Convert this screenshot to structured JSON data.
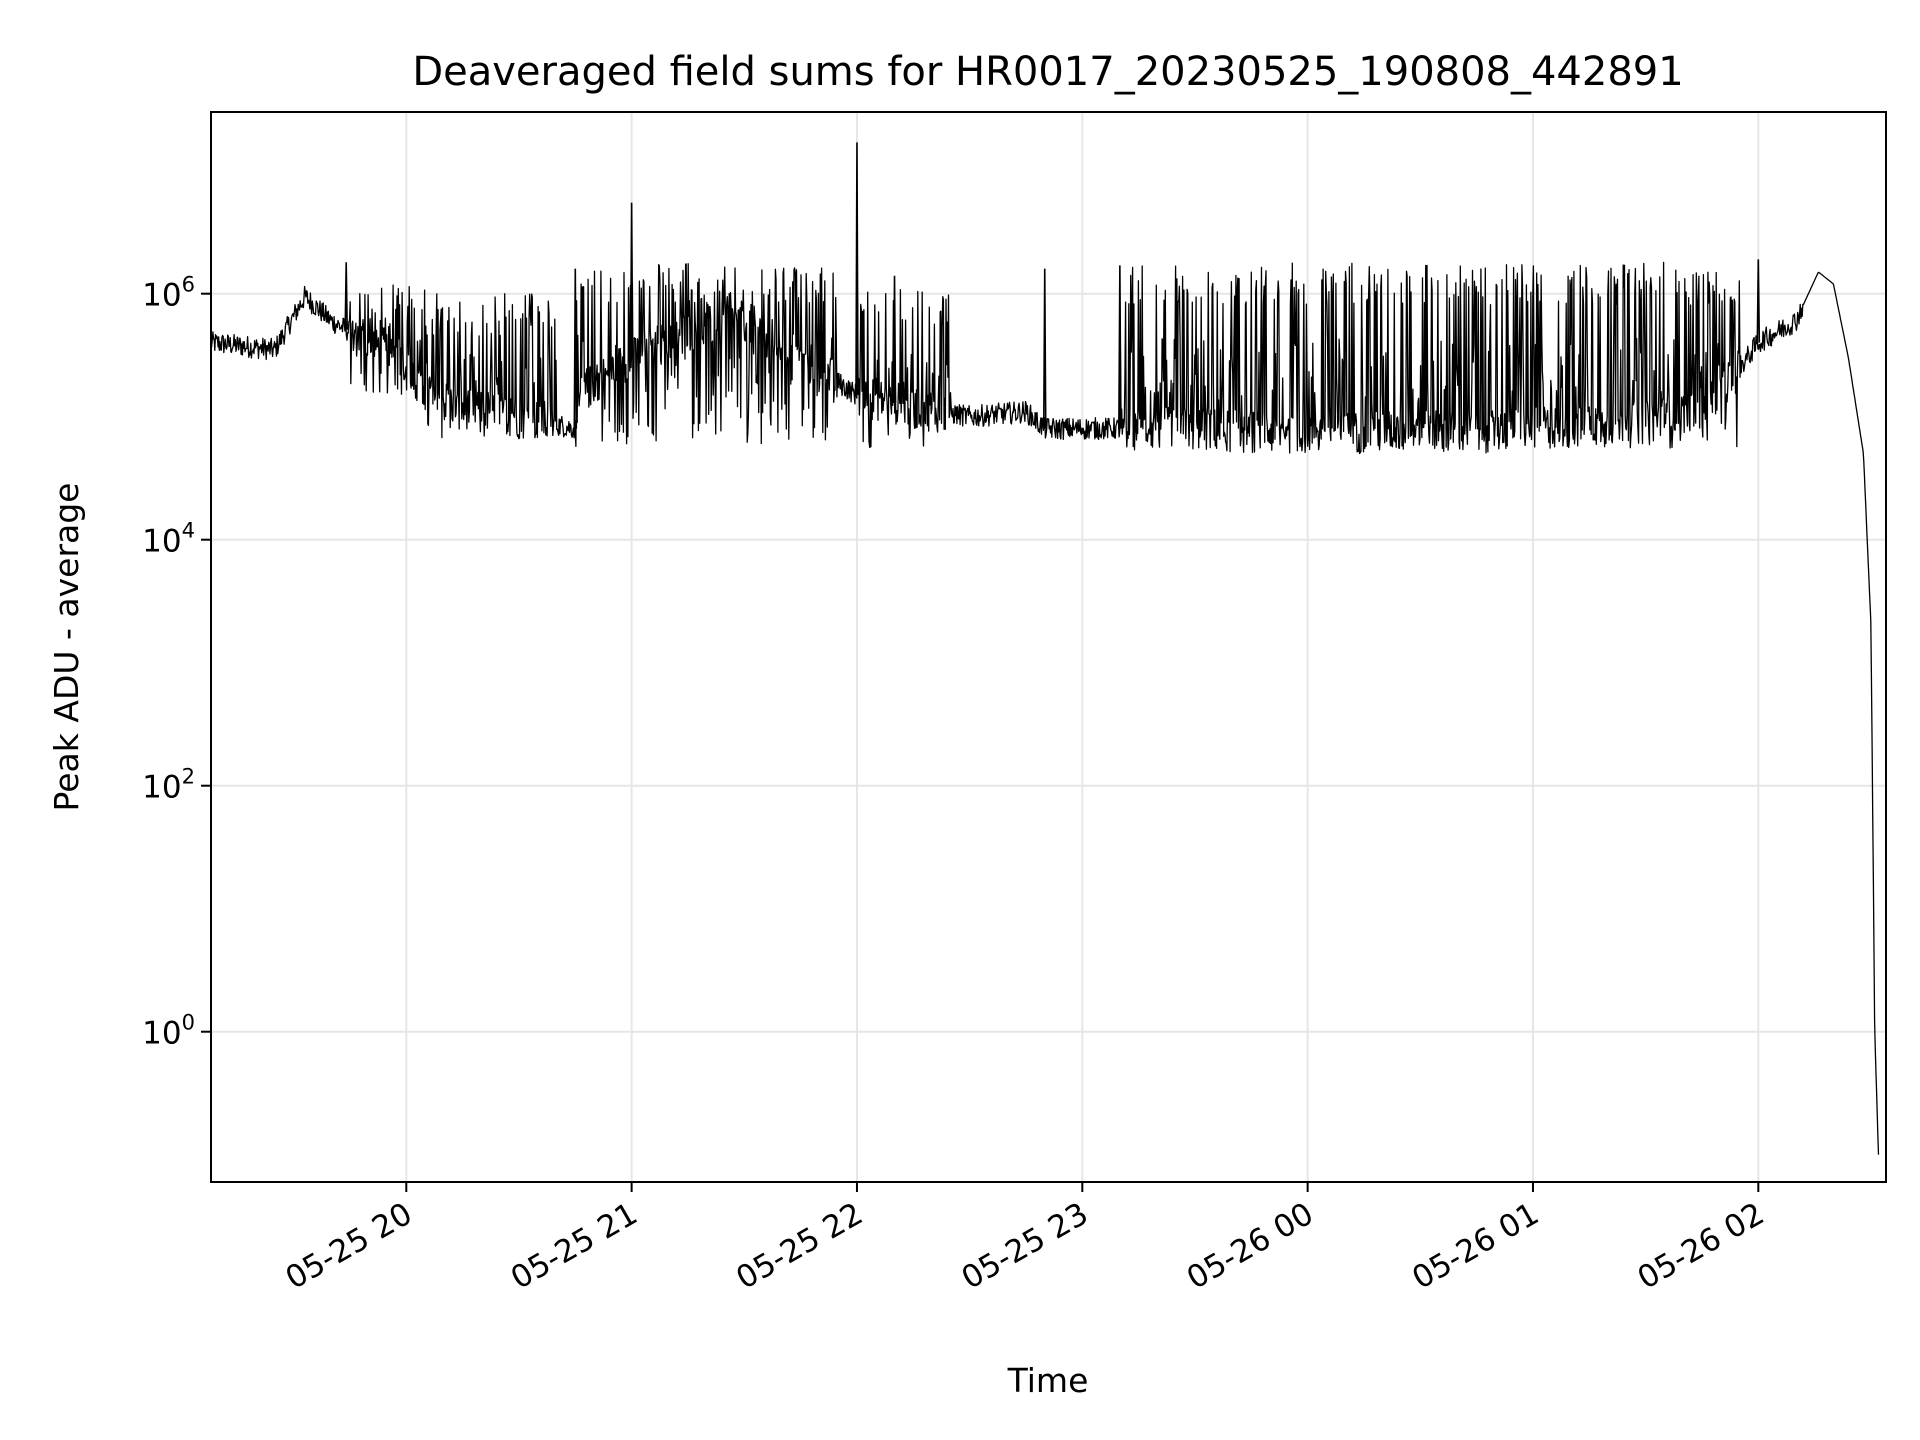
{
  "chart_data": {
    "type": "line",
    "title": "Deaveraged field sums for HR0017_20230525_190808_442891",
    "xlabel": "Time",
    "ylabel": "Peak ADU - average",
    "yscale": "log",
    "ylim": [
      0.06,
      30000000.0
    ],
    "xlim": [
      "2023-05-25 19:08:00",
      "2023-05-26 02:34:00"
    ],
    "grid": true,
    "legend": "none",
    "line_color": "#000000",
    "x_ticks": [
      "05-25 20",
      "05-25 21",
      "05-25 22",
      "05-25 23",
      "05-26 00",
      "05-26 01",
      "05-26 02"
    ],
    "y_ticks": [
      {
        "value": 1,
        "base": "10",
        "exp": "0"
      },
      {
        "value": 100,
        "base": "10",
        "exp": "2"
      },
      {
        "value": 10000,
        "base": "10",
        "exp": "4"
      },
      {
        "value": 1000000,
        "base": "10",
        "exp": "6"
      }
    ],
    "series": [
      {
        "x": [
          "2023-05-25 19:08:00",
          "2023-05-25 19:15:00",
          "2023-05-25 19:25:00",
          "2023-05-25 19:33:00",
          "2023-05-25 19:40:00",
          "2023-05-25 19:50:00",
          "2023-05-25 20:00:00",
          "2023-05-25 20:02:00",
          "2023-05-25 20:15:00",
          "2023-05-25 20:30:00",
          "2023-05-25 20:45:00",
          "2023-05-25 20:47:00",
          "2023-05-25 21:00:00",
          "2023-05-25 21:15:00",
          "2023-05-25 21:30:00",
          "2023-05-25 21:45:00",
          "2023-05-25 22:00:00",
          "2023-05-25 22:15:00",
          "2023-05-25 22:30:00",
          "2023-05-25 22:45:00",
          "2023-05-25 22:50:00",
          "2023-05-25 23:00:00",
          "2023-05-25 23:15:00",
          "2023-05-25 23:30:00",
          "2023-05-25 23:45:00",
          "2023-05-26 00:00:00",
          "2023-05-26 00:15:00",
          "2023-05-26 00:30:00",
          "2023-05-26 00:45:00",
          "2023-05-26 01:00:00",
          "2023-05-26 01:15:00",
          "2023-05-26 01:30:00",
          "2023-05-26 01:45:00",
          "2023-05-26 01:55:00",
          "2023-05-26 02:00:00",
          "2023-05-26 02:10:00",
          "2023-05-26 02:16:00",
          "2023-05-26 02:20:00",
          "2023-05-26 02:24:00",
          "2023-05-26 02:28:00",
          "2023-05-26 02:30:00",
          "2023-05-26 02:31:00",
          "2023-05-26 02:32:00"
        ],
        "values": [
          400000,
          380000,
          350000,
          950000,
          600000,
          400000,
          300000,
          160000,
          120000,
          100000,
          80000,
          160000,
          300000,
          500000,
          600000,
          300000,
          150000,
          120000,
          100000,
          110000,
          80000,
          80000,
          80000,
          80000,
          75000,
          75000,
          75000,
          75000,
          75000,
          80000,
          85000,
          90000,
          120000,
          250000,
          400000,
          600000,
          1500000,
          1200000,
          300000,
          50000,
          2000,
          1,
          0.1
        ]
      }
    ],
    "spikes": [
      {
        "x": "2023-05-25 19:44:00",
        "y": 1800000
      },
      {
        "x": "2023-05-25 20:45:00",
        "y": 1600000
      },
      {
        "x": "2023-05-25 21:00:00",
        "y": 5500000
      },
      {
        "x": "2023-05-25 22:00:00",
        "y": 17000000
      },
      {
        "x": "2023-05-25 22:10:00",
        "y": 1400000
      },
      {
        "x": "2023-05-25 22:50:00",
        "y": 1600000
      },
      {
        "x": "2023-05-25 23:10:00",
        "y": 1700000
      },
      {
        "x": "2023-05-26 02:00:00",
        "y": 1900000
      }
    ],
    "dense_spike_regions": [
      {
        "from": "2023-05-25 19:45:00",
        "to": "2023-05-25 20:05:00",
        "low": 150000,
        "high": 1200000
      },
      {
        "from": "2023-05-25 20:05:00",
        "to": "2023-05-25 20:40:00",
        "low": 60000,
        "high": 1000000
      },
      {
        "from": "2023-05-25 20:45:00",
        "to": "2023-05-25 21:55:00",
        "low": 60000,
        "high": 1800000
      },
      {
        "from": "2023-05-25 22:00:00",
        "to": "2023-05-25 22:25:00",
        "low": 55000,
        "high": 1100000
      },
      {
        "from": "2023-05-25 23:10:00",
        "to": "2023-05-26 01:55:00",
        "low": 55000,
        "high": 1800000
      }
    ]
  }
}
